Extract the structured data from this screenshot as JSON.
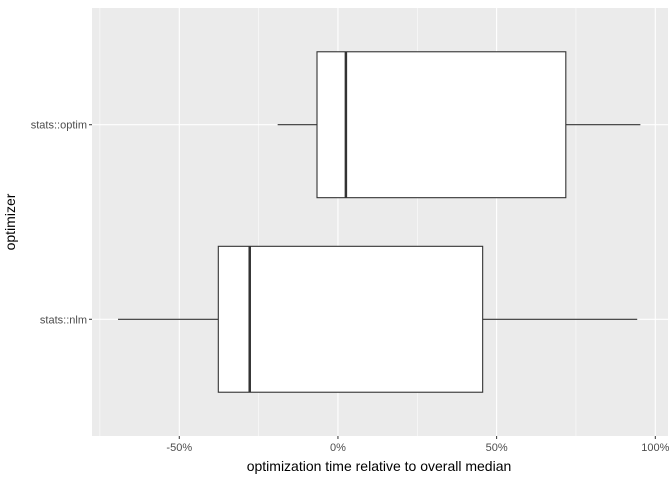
{
  "chart_data": {
    "type": "boxplot",
    "orientation": "horizontal",
    "title": "",
    "xlabel": "optimization time relative to overall median",
    "ylabel": "optimizer",
    "xlim": [
      -77.5,
      104
    ],
    "x_ticks": [
      -50,
      0,
      50,
      100
    ],
    "x_tick_labels": [
      "-50%",
      "0%",
      "50%",
      "100%"
    ],
    "grid": true,
    "categories": [
      "stats::nlm",
      "stats::optim"
    ],
    "boxes": [
      {
        "category": "stats::nlm",
        "whisker_low": -69.3,
        "q1": -37.7,
        "median": -27.8,
        "q3": 45.6,
        "whisker_high": 94.3
      },
      {
        "category": "stats::optim",
        "whisker_low": -19.0,
        "q1": -6.6,
        "median": 2.5,
        "q3": 71.8,
        "whisker_high": 95.3
      }
    ],
    "colors": {
      "panel": "#ebebeb",
      "grid": "#ffffff",
      "box_fill": "#ffffff",
      "box_line": "#333333",
      "text": "#4d4d4d"
    }
  }
}
